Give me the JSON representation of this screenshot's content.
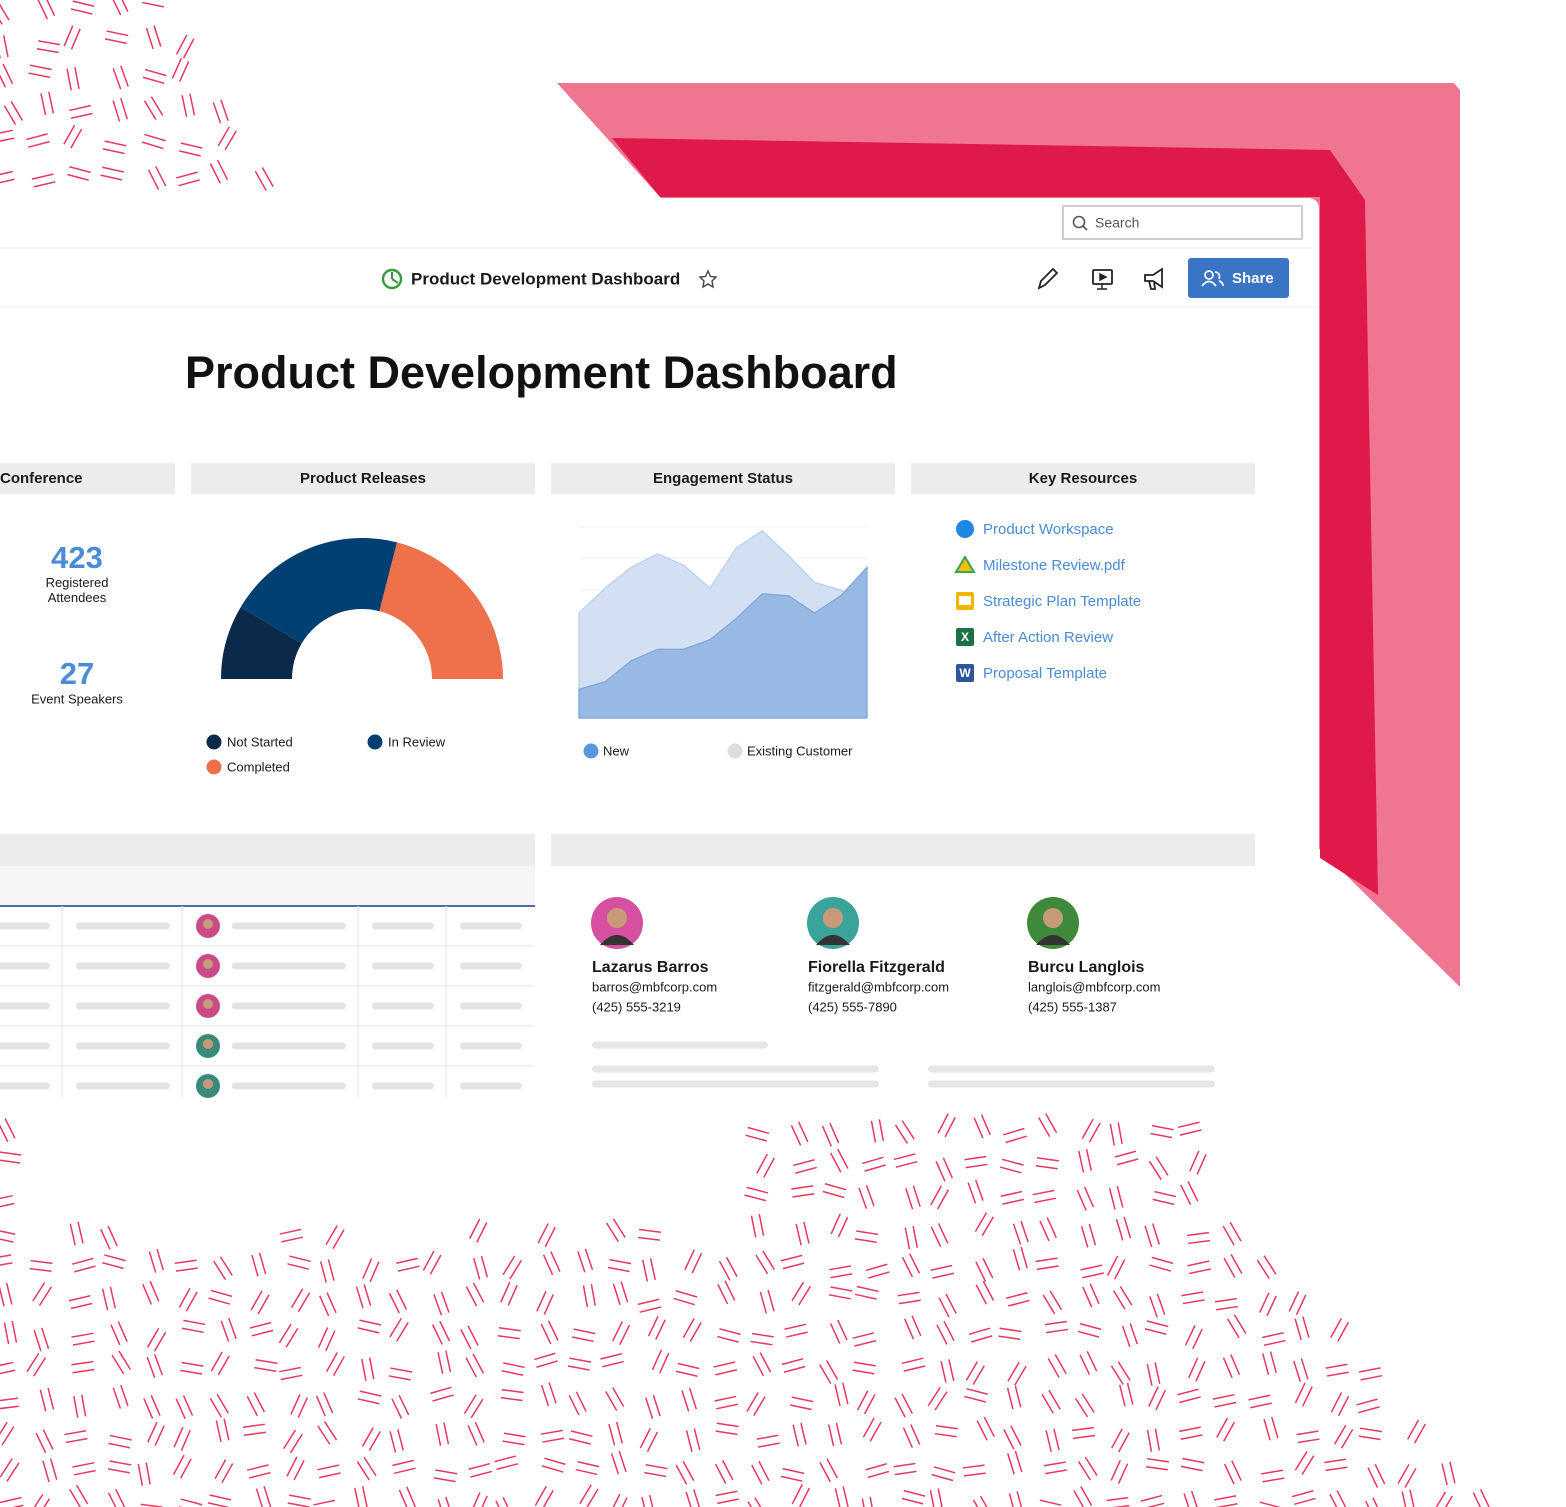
{
  "toolbar": {
    "search": "Search",
    "page_title": "Product Development Dashboard",
    "share": "Share"
  },
  "heading": "Product Development Dashboard",
  "conference": {
    "title": "Conference",
    "stats": [
      {
        "value": 423,
        "label": "Registered Attendees"
      },
      {
        "value": 27,
        "label": "Event Speakers"
      }
    ]
  },
  "product_releases": {
    "title": "Product Releases",
    "type": "pie",
    "categories": [
      "Not Started",
      "In Review",
      "Completed"
    ],
    "values": [
      17,
      41,
      42
    ],
    "colors": [
      "#0b2a4a",
      "#003f72",
      "#ef714c"
    ]
  },
  "engagement_status": {
    "title": "Engagement Status",
    "type": "area",
    "ylim": [
      0,
      100
    ],
    "series": [
      {
        "name": "New",
        "color": "#97b9e3",
        "values": [
          15,
          19,
          30,
          36,
          36,
          41,
          52,
          65,
          64,
          55,
          64,
          79
        ]
      },
      {
        "name": "Existing Customer",
        "color": "#d3e0f3",
        "values": [
          55,
          68,
          79,
          86,
          80,
          68,
          89,
          98,
          85,
          71,
          67,
          60
        ]
      }
    ]
  },
  "key_resources": {
    "title": "Key Resources",
    "items": [
      "Product Workspace",
      "Milestone Review.pdf",
      "Strategic Plan Template",
      "After Action Review",
      "Proposal Template"
    ]
  },
  "contacts": [
    {
      "name": "Lazarus Barros",
      "email": "barros@mbfcorp.com",
      "phone": "(425) 555-3219"
    },
    {
      "name": "Fiorella Fitzgerald",
      "email": "fitzgerald@mbfcorp.com",
      "phone": "(425) 555-7890"
    },
    {
      "name": "Burcu Langlois",
      "email": "langlois@mbfcorp.com",
      "phone": "(425) 555-1387"
    }
  ]
}
